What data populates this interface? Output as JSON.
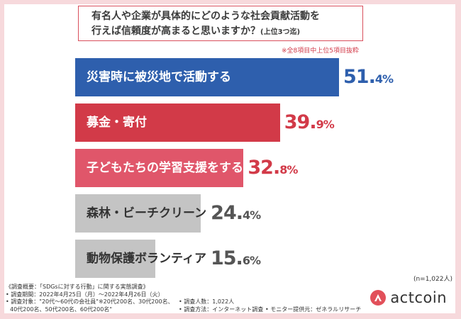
{
  "title": {
    "line1": "有名人や企業が具体的にどのような社会貢献活動を",
    "line2": "行えば信頼度が高まると思いますか？",
    "line2_sub": "(上位3つ迄)"
  },
  "excerpt_note": "※全8項目中上位5項目抜粋",
  "chart_data": {
    "type": "bar",
    "orientation": "horizontal",
    "title": "有名人や企業が具体的にどのような社会貢献活動を行えば信頼度が高まると思いますか？(上位3つ迄)",
    "unit": "%",
    "categories": [
      "災害時に被災地で活動する",
      "募金・寄付",
      "子どもたちの学習支援をする",
      "森林・ビーチクリーン",
      "動物保護ボランティア"
    ],
    "values": [
      51.4,
      39.9,
      32.8,
      24.4,
      15.6
    ],
    "value_labels": [
      {
        "int": "51.",
        "dec": "4%"
      },
      {
        "int": "39.",
        "dec": "9%"
      },
      {
        "int": "32.",
        "dec": "8%"
      },
      {
        "int": "24.",
        "dec": "4%"
      },
      {
        "int": "15.",
        "dec": "6%"
      }
    ],
    "colors": [
      "#2e5fad",
      "#d23a48",
      "#e0566a",
      "#c4c4c4",
      "#c4c4c4"
    ],
    "label_colors": [
      "#ffffff",
      "#ffffff",
      "#ffffff",
      "#333333",
      "#333333"
    ],
    "value_colors": [
      "#2e5fad",
      "#d23a48",
      "#d23a48",
      "#555555",
      "#555555"
    ],
    "xlim": [
      0,
      70
    ],
    "grid": false
  },
  "sample_size": "(n=1,022人)",
  "footer": {
    "line1": "《調査概要：「SDGsに対する行動」に関する実態調査》",
    "period": "• 調査期間：2022年4月25日（月）～2022年4月26日（火）",
    "target_a": "• 調査対象：\"20代～60代の会社員\"※20代200名、30代200名、",
    "count": "• 調査人数：1,022人",
    "target_b": "40代200名、50代200名、60代200名\"",
    "method": "• 調査方法：インターネット調査",
    "provider": "• モニター提供元：ゼネラルリサーチ"
  },
  "logo": {
    "text": "actcoin",
    "color": "#e2505a"
  }
}
